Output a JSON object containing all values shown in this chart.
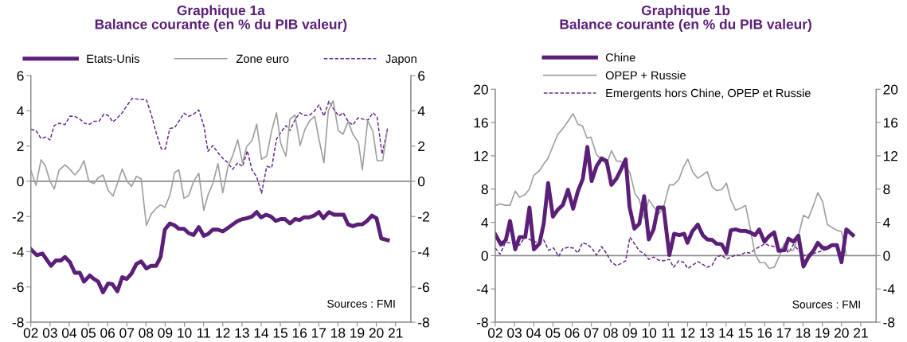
{
  "chart_data": [
    {
      "type": "line",
      "title": "Graphique 1a\nBalance courante (en % du PIB valeur)",
      "legend": "top",
      "xlim": [
        2,
        21.8
      ],
      "xticks": [
        {
          "value": 2,
          "label": "02"
        },
        {
          "value": 3,
          "label": "03"
        },
        {
          "value": 4,
          "label": "04"
        },
        {
          "value": 5,
          "label": "05"
        },
        {
          "value": 6,
          "label": "06"
        },
        {
          "value": 7,
          "label": "07"
        },
        {
          "value": 8,
          "label": "08"
        },
        {
          "value": 9,
          "label": "09"
        },
        {
          "value": 10,
          "label": "10"
        },
        {
          "value": 11,
          "label": "11"
        },
        {
          "value": 12,
          "label": "12"
        },
        {
          "value": 13,
          "label": "13"
        },
        {
          "value": 14,
          "label": "14"
        },
        {
          "value": 15,
          "label": "15"
        },
        {
          "value": 16,
          "label": "16"
        },
        {
          "value": 17,
          "label": "17"
        },
        {
          "value": 18,
          "label": "18"
        },
        {
          "value": 19,
          "label": "19"
        },
        {
          "value": 20,
          "label": "20"
        },
        {
          "value": 21,
          "label": "21"
        }
      ],
      "ylim": [
        -8,
        6
      ],
      "yticks": [
        -8,
        -6,
        -4,
        -2,
        0,
        2,
        4,
        6
      ],
      "y2lim": [
        -8,
        6
      ],
      "y2ticks": [
        -8,
        -6,
        -4,
        -2,
        0,
        2,
        4,
        6
      ],
      "ref_lines": [
        {
          "axis": "y",
          "value": 0,
          "color": "#8c8c8c"
        }
      ],
      "annotations": [
        "Sources : FMI"
      ],
      "series": [
        {
          "name": "Etats-Unis",
          "color": "#5b1f78",
          "line_style": "solid",
          "x": [
            2.0,
            2.31,
            2.6,
            3.05,
            3.3,
            3.56,
            3.78,
            4.04,
            4.29,
            4.55,
            4.77,
            5.07,
            5.29,
            5.51,
            5.76,
            6.03,
            6.25,
            6.51,
            6.76,
            6.99,
            7.24,
            7.5,
            7.75,
            8.02,
            8.27,
            8.53,
            8.76,
            8.98,
            9.24,
            9.49,
            9.71,
            9.98,
            10.23,
            10.48,
            10.75,
            11.01,
            11.23,
            11.48,
            11.75,
            12.0,
            12.27,
            12.52,
            12.78,
            13.03,
            13.25,
            13.52,
            13.77,
            13.99,
            14.26,
            14.51,
            14.76,
            15.02,
            15.24,
            15.5,
            15.76,
            16.01,
            16.23,
            16.5,
            16.76,
            17.01,
            17.24,
            17.53,
            17.8,
            18.05,
            18.3,
            18.53,
            18.78,
            19.04,
            19.27,
            19.52,
            19.77,
            20.01,
            20.26,
            20.6
          ],
          "values": [
            -3.86,
            -4.2,
            -4.1,
            -4.8,
            -4.5,
            -4.5,
            -4.3,
            -4.6,
            -5.2,
            -5.2,
            -5.7,
            -5.35,
            -5.55,
            -5.7,
            -6.3,
            -5.8,
            -5.85,
            -6.25,
            -5.45,
            -5.55,
            -5.25,
            -4.7,
            -4.55,
            -4.95,
            -4.8,
            -4.8,
            -4.3,
            -2.75,
            -2.4,
            -2.5,
            -2.7,
            -2.7,
            -2.95,
            -3.05,
            -2.6,
            -3.1,
            -3.0,
            -2.75,
            -2.75,
            -2.85,
            -2.65,
            -2.45,
            -2.25,
            -2.15,
            -2.1,
            -2.0,
            -1.75,
            -2.05,
            -1.9,
            -2.0,
            -2.25,
            -2.15,
            -2.15,
            -2.4,
            -2.15,
            -2.2,
            -2.05,
            -2.05,
            -1.95,
            -1.75,
            -2.1,
            -1.75,
            -1.9,
            -1.9,
            -1.9,
            -2.45,
            -2.55,
            -2.45,
            -2.45,
            -2.25,
            -1.95,
            -2.1,
            -3.25,
            -3.35
          ]
        },
        {
          "name": "Zone euro",
          "color": "#a0a0a0",
          "line_style": "solid",
          "x": [
            2.0,
            2.27,
            2.53,
            2.75,
            3.0,
            3.22,
            3.47,
            3.78,
            4.04,
            4.29,
            4.55,
            4.77,
            5.02,
            5.29,
            5.51,
            5.76,
            6.03,
            6.28,
            6.51,
            6.76,
            7.01,
            7.25,
            7.5,
            7.75,
            8.02,
            8.27,
            8.53,
            8.76,
            8.98,
            9.24,
            9.49,
            9.71,
            9.98,
            10.23,
            10.48,
            10.75,
            11.01,
            11.23,
            11.48,
            11.75,
            12.0,
            12.27,
            12.52,
            12.78,
            13.03,
            13.25,
            13.52,
            13.77,
            14.02,
            14.29,
            14.55,
            14.8,
            15.02,
            15.29,
            15.5,
            15.76,
            16.03,
            16.28,
            16.53,
            16.79,
            17.01,
            17.27,
            17.5,
            17.75,
            18.02,
            18.27,
            18.53,
            18.78,
            19.07,
            19.27,
            19.55,
            19.82,
            20.04,
            20.33,
            20.55
          ],
          "values": [
            0.62,
            -0.24,
            1.22,
            0.9,
            0,
            -0.44,
            0.62,
            0.94,
            0.68,
            0.36,
            0.68,
            1.17,
            0,
            -0.13,
            0.2,
            0.36,
            -0.52,
            -0.84,
            -0.13,
            0.7,
            0,
            -0.29,
            0.28,
            0.13,
            -2.51,
            -1.86,
            -1.54,
            -1.33,
            -1.49,
            -0.81,
            0.49,
            0.65,
            -0.97,
            -0.81,
            0,
            0.45,
            -1.65,
            -0.78,
            -0.13,
            1.0,
            -0.65,
            0.84,
            1.46,
            2.35,
            1.05,
            1.98,
            2.3,
            3.24,
            1.25,
            1.43,
            2.88,
            3.89,
            2.14,
            1.43,
            3.52,
            3.76,
            2.03,
            2.95,
            3.44,
            3.68,
            2.4,
            1.05,
            4.0,
            4.57,
            2.88,
            2.67,
            3.4,
            2.67,
            2.19,
            0.65,
            3.44,
            2.84,
            1.17,
            1.17,
            2.76
          ]
        },
        {
          "name": "Japon",
          "color": "#6a2c8e",
          "line_style": "dashed",
          "x": [
            2.0,
            2.27,
            2.53,
            2.78,
            3.0,
            3.22,
            3.47,
            3.78,
            4.04,
            4.29,
            4.55,
            4.8,
            5.07,
            5.29,
            5.55,
            5.81,
            6.03,
            6.28,
            6.51,
            6.76,
            7.01,
            7.28,
            7.53,
            7.75,
            8.02,
            8.27,
            8.53,
            8.8,
            9.01,
            9.24,
            9.49,
            9.71,
            9.98,
            10.23,
            10.48,
            10.75,
            11.01,
            11.23,
            11.48,
            11.75,
            12.0,
            12.27,
            12.52,
            12.78,
            13.03,
            13.28,
            13.52,
            13.77,
            14.02,
            14.29,
            14.55,
            14.8,
            15.02,
            15.29,
            15.5,
            15.76,
            16.01,
            16.28,
            16.53,
            16.76,
            17.01,
            17.27,
            17.53,
            17.8,
            18.05,
            18.27,
            18.53,
            18.78,
            19.04,
            19.3,
            19.57,
            19.82,
            20.04,
            20.3,
            20.6
          ],
          "values": [
            2.95,
            2.88,
            2.43,
            2.51,
            2.35,
            3.16,
            3.29,
            3.21,
            3.7,
            3.68,
            3.53,
            3.29,
            3.24,
            3.4,
            3.4,
            3.81,
            3.73,
            3.37,
            3.6,
            3.89,
            4.3,
            4.7,
            4.67,
            4.65,
            4.62,
            3.81,
            2.76,
            1.83,
            1.83,
            3.0,
            3.05,
            3.4,
            3.86,
            3.68,
            3.81,
            4.05,
            3.16,
            1.7,
            2.03,
            1.62,
            1.3,
            1.05,
            0.68,
            1.05,
            0.84,
            1.73,
            0.65,
            0.24,
            -0.68,
            0.84,
            0.78,
            2.4,
            2.76,
            3.16,
            2.88,
            3.48,
            3.89,
            3.73,
            3.76,
            3.97,
            4.33,
            3.7,
            4.54,
            4.05,
            3.7,
            3.89,
            3.4,
            3.19,
            3.6,
            3.53,
            3.48,
            3.89,
            3.65,
            1.54,
            3.08
          ]
        }
      ]
    },
    {
      "type": "line",
      "title": "Graphique 1b\nBalance courante (en % du PIB valeur)",
      "legend": "top left",
      "xlim": [
        2,
        21.8
      ],
      "xticks": [
        {
          "value": 2,
          "label": "02"
        },
        {
          "value": 3,
          "label": "03"
        },
        {
          "value": 4,
          "label": "04"
        },
        {
          "value": 5,
          "label": "05"
        },
        {
          "value": 6,
          "label": "06"
        },
        {
          "value": 7,
          "label": "07"
        },
        {
          "value": 8,
          "label": "08"
        },
        {
          "value": 9,
          "label": "09"
        },
        {
          "value": 10,
          "label": "10"
        },
        {
          "value": 11,
          "label": "11"
        },
        {
          "value": 12,
          "label": "12"
        },
        {
          "value": 13,
          "label": "13"
        },
        {
          "value": 14,
          "label": "14"
        },
        {
          "value": 15,
          "label": "15"
        },
        {
          "value": 16,
          "label": "16"
        },
        {
          "value": 17,
          "label": "17"
        },
        {
          "value": 18,
          "label": "18"
        },
        {
          "value": 19,
          "label": "19"
        },
        {
          "value": 20,
          "label": "20"
        },
        {
          "value": 21,
          "label": "21"
        }
      ],
      "ylim": [
        -8,
        20
      ],
      "yticks": [
        -8,
        -4,
        0,
        4,
        8,
        12,
        16,
        20
      ],
      "y2lim": [
        -8,
        20
      ],
      "y2ticks": [
        -8,
        -4,
        0,
        4,
        8,
        12,
        16,
        20
      ],
      "ref_lines": [
        {
          "axis": "y",
          "value": 0,
          "color": "#8c8c8c"
        }
      ],
      "annotations": [
        "Sources : FMI"
      ],
      "series": [
        {
          "name": "Chine",
          "color": "#5b1f78",
          "line_style": "solid",
          "x": [
            2.0,
            2.3,
            2.55,
            2.77,
            3.04,
            3.26,
            3.56,
            3.78,
            4.01,
            4.3,
            4.52,
            4.75,
            5.0,
            5.26,
            5.52,
            5.78,
            6.05,
            6.3,
            6.55,
            6.79,
            7.01,
            7.27,
            7.53,
            7.79,
            8.04,
            8.31,
            8.53,
            8.78,
            8.98,
            9.23,
            9.49,
            9.74,
            9.98,
            10.23,
            10.46,
            10.75,
            11.05,
            11.3,
            11.57,
            11.82,
            11.99,
            12.24,
            12.53,
            12.79,
            13.02,
            13.28,
            13.5,
            13.77,
            14.02,
            14.24,
            14.49,
            14.76,
            15.01,
            15.25,
            15.5,
            15.72,
            15.99,
            16.24,
            16.5,
            16.73,
            17.03,
            17.24,
            17.5,
            17.76,
            18.02,
            18.28,
            18.54,
            18.77,
            19.02,
            19.26,
            19.51,
            19.76,
            20.0,
            20.25,
            20.59
          ],
          "values": [
            2.56,
            1.33,
            1.88,
            4.17,
            0.75,
            2.22,
            2.22,
            5.78,
            0.75,
            1.44,
            3.83,
            8.72,
            4.68,
            5.54,
            6.12,
            7.93,
            5.64,
            7.76,
            9.2,
            13.06,
            8.96,
            10.77,
            11.69,
            11.35,
            8.51,
            9.3,
            10.32,
            11.59,
            5.88,
            3.25,
            3.83,
            7.15,
            1.95,
            3.15,
            5.78,
            5.78,
            0.07,
            2.63,
            2.46,
            2.63,
            1.54,
            2.91,
            3.73,
            2.46,
            1.95,
            1.88,
            1.44,
            1.37,
            0.31,
            3.04,
            3.15,
            2.97,
            2.97,
            2.8,
            2.46,
            3.15,
            1.68,
            2.36,
            2.8,
            0.58,
            0.65,
            2.05,
            1.68,
            2.39,
            -1.3,
            -0.17,
            0.58,
            1.54,
            0.92,
            0.92,
            1.26,
            1.26,
            -0.79,
            3.15,
            2.46
          ]
        },
        {
          "name": "OPEP + Russie",
          "color": "#a0a0a0",
          "line_style": "solid",
          "x": [
            2.0,
            2.25,
            2.52,
            2.77,
            3.04,
            3.26,
            3.56,
            3.78,
            4.0,
            4.3,
            4.52,
            4.74,
            5.04,
            5.26,
            5.52,
            5.78,
            6.05,
            6.3,
            6.53,
            6.78,
            6.97,
            7.27,
            7.53,
            7.79,
            8.04,
            8.31,
            8.53,
            8.75,
            9.0,
            9.27,
            9.49,
            9.74,
            9.98,
            10.23,
            10.5,
            10.75,
            11.05,
            11.27,
            11.54,
            11.79,
            12.01,
            12.28,
            12.53,
            12.79,
            13.02,
            13.28,
            13.5,
            13.77,
            14.02,
            14.24,
            14.49,
            14.76,
            15.01,
            15.25,
            15.5,
            15.75,
            16.02,
            16.24,
            16.5,
            16.73,
            17.03,
            17.24,
            17.5,
            17.76,
            18.02,
            18.28,
            18.54,
            18.77,
            19.02,
            19.26,
            19.51,
            19.76,
            20.0,
            20.25
          ],
          "values": [
            5.98,
            6.22,
            6.05,
            6.05,
            7.76,
            7.01,
            7.35,
            8.03,
            9.64,
            10.22,
            11.01,
            11.69,
            13.4,
            14.6,
            15.28,
            16.14,
            17.06,
            15.79,
            15.62,
            14.09,
            14.26,
            12.14,
            11.52,
            11.01,
            12.62,
            11.35,
            11.35,
            10.84,
            9.98,
            7.42,
            6.74,
            4.51,
            6.74,
            5.88,
            5.03,
            5.81,
            8.51,
            8.51,
            9.13,
            10.67,
            11.59,
            9.98,
            9.3,
            9.71,
            10.09,
            8.27,
            7.83,
            7.93,
            8.72,
            6.74,
            5.47,
            5.71,
            6.05,
            3.32,
            0.24,
            -0.85,
            -0.85,
            -1.54,
            -1.4,
            -0.27,
            1.5,
            0.58,
            0.65,
            2.36,
            4.85,
            4.51,
            6.05,
            7.59,
            6.46,
            3.73,
            3.38,
            3.04,
            2.91,
            0.07
          ]
        },
        {
          "name": "Emergents hors Chine, OPEP et Russie",
          "color": "#6a2c8e",
          "line_style": "dashed",
          "x": [
            2.0,
            2.25,
            2.52,
            2.77,
            3.04,
            3.26,
            3.56,
            3.78,
            4.0,
            4.3,
            4.52,
            4.77,
            5.04,
            5.29,
            5.52,
            5.78,
            6.05,
            6.3,
            6.53,
            6.78,
            7.01,
            7.27,
            7.53,
            7.79,
            8.04,
            8.31,
            8.53,
            8.78,
            9.0,
            9.27,
            9.49,
            9.74,
            9.98,
            10.23,
            10.5,
            10.75,
            11.05,
            11.27,
            11.54,
            11.79,
            12.01,
            12.28,
            12.53,
            12.79,
            13.02,
            13.28,
            13.5,
            13.77,
            14.02,
            14.24,
            14.49,
            14.76,
            15.01,
            15.25,
            15.5,
            15.75,
            16.02,
            16.24,
            16.5,
            16.73,
            17.03,
            17.24,
            17.5,
            17.76,
            18.02,
            18.28,
            18.54,
            18.77,
            19.02,
            19.26,
            19.51
          ],
          "values": [
            0.92,
            0.17,
            1.54,
            1.54,
            1.44,
            1.26,
            2.29,
            1.95,
            1.68,
            1.54,
            1.88,
            0.65,
            0.92,
            -0.1,
            0.85,
            0.99,
            0.92,
            0.31,
            1.54,
            1.37,
            0.92,
            0.07,
            1.09,
            0.24,
            -0.79,
            -1.2,
            -0.96,
            -0.62,
            2.22,
            1.33,
            0.58,
            0.24,
            -0.44,
            -0.17,
            -0.55,
            -0.62,
            -0.44,
            -1.4,
            -0.62,
            -0.79,
            -1.54,
            -1.13,
            -0.72,
            -1.06,
            -1.4,
            -1.13,
            -0.17,
            0.07,
            -0.44,
            -0.17,
            0.07,
            0.07,
            0.41,
            0.31,
            0.75,
            1.09,
            1.44,
            1.2,
            1.09,
            0.92,
            0.99,
            0.34,
            1.33,
            0.65,
            -0.03,
            0.17,
            0.24,
            0.41,
            0.58,
            0.75,
            1.2
          ]
        }
      ]
    }
  ]
}
